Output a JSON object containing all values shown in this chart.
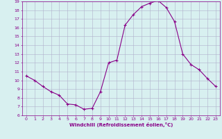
{
  "x": [
    0,
    1,
    2,
    3,
    4,
    5,
    6,
    7,
    8,
    9,
    10,
    11,
    12,
    13,
    14,
    15,
    16,
    17,
    18,
    19,
    20,
    21,
    22,
    23
  ],
  "y": [
    10.5,
    10.0,
    9.3,
    8.7,
    8.3,
    7.3,
    7.2,
    6.7,
    6.8,
    8.7,
    12.0,
    12.3,
    16.3,
    17.5,
    18.4,
    18.8,
    19.1,
    18.3,
    16.7,
    13.0,
    11.8,
    11.2,
    10.2,
    9.3
  ],
  "line_color": "#880088",
  "marker": "+",
  "markersize": 3.5,
  "linewidth": 0.8,
  "xlabel": "Windchill (Refroidissement éolien,°C)",
  "xlabel_color": "#880088",
  "bg_color": "#d8f0f0",
  "grid_color": "#b0b0cc",
  "tick_color": "#880088",
  "ylim": [
    6,
    19
  ],
  "yticks": [
    6,
    7,
    8,
    9,
    10,
    11,
    12,
    13,
    14,
    15,
    16,
    17,
    18,
    19
  ],
  "xticks": [
    0,
    1,
    2,
    3,
    4,
    5,
    6,
    7,
    8,
    9,
    10,
    11,
    12,
    13,
    14,
    15,
    16,
    17,
    18,
    19,
    20,
    21,
    22,
    23
  ],
  "spine_color": "#880088",
  "tick_fontsize": 4.5,
  "xlabel_fontsize": 5.0
}
